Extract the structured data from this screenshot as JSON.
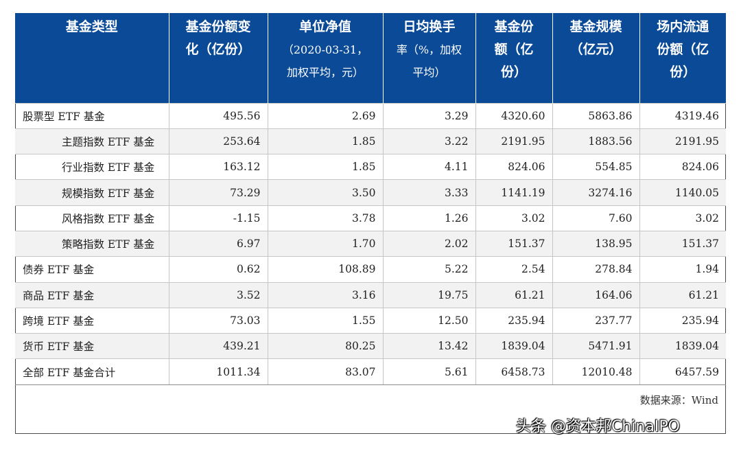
{
  "table": {
    "headers": [
      {
        "main": [
          "基金类型"
        ],
        "sub": []
      },
      {
        "main": [
          "基金份额变",
          "化（亿份）"
        ],
        "sub": []
      },
      {
        "main": [
          "单位净值"
        ],
        "sub": [
          "（2020-03-31，",
          "加权平均，元）"
        ]
      },
      {
        "main": [
          "日均换手"
        ],
        "sub": [
          "率（%，加权",
          "平均）"
        ]
      },
      {
        "main": [
          "基金份",
          "额（亿",
          "份）"
        ],
        "sub": []
      },
      {
        "main": [
          "基金规模",
          "（亿元）"
        ],
        "sub": []
      },
      {
        "main": [
          "场内流通",
          "份额（亿",
          "份）"
        ],
        "sub": []
      }
    ],
    "rows": [
      {
        "name": "股票型 ETF 基金",
        "indent": false,
        "shade": false,
        "values": [
          "495.56",
          "2.69",
          "3.29",
          "4320.60",
          "5863.86",
          "4319.46"
        ]
      },
      {
        "name": "主题指数 ETF 基金",
        "indent": true,
        "shade": true,
        "values": [
          "253.64",
          "1.85",
          "3.22",
          "2191.95",
          "1883.56",
          "2191.95"
        ]
      },
      {
        "name": "行业指数 ETF 基金",
        "indent": true,
        "shade": false,
        "values": [
          "163.12",
          "1.85",
          "4.11",
          "824.06",
          "554.85",
          "824.06"
        ]
      },
      {
        "name": "规模指数 ETF 基金",
        "indent": true,
        "shade": true,
        "values": [
          "73.29",
          "3.50",
          "3.33",
          "1141.19",
          "3274.16",
          "1140.05"
        ]
      },
      {
        "name": "风格指数 ETF 基金",
        "indent": true,
        "shade": false,
        "values": [
          "-1.15",
          "3.78",
          "1.26",
          "3.02",
          "7.60",
          "3.02"
        ]
      },
      {
        "name": "策略指数 ETF 基金",
        "indent": true,
        "shade": true,
        "values": [
          "6.97",
          "1.70",
          "2.02",
          "151.37",
          "138.95",
          "151.37"
        ]
      },
      {
        "name": "债券 ETF 基金",
        "indent": false,
        "shade": false,
        "values": [
          "0.62",
          "108.89",
          "5.22",
          "2.54",
          "278.84",
          "1.94"
        ]
      },
      {
        "name": "商品 ETF 基金",
        "indent": false,
        "shade": true,
        "values": [
          "3.52",
          "3.16",
          "19.75",
          "61.21",
          "164.06",
          "61.21"
        ]
      },
      {
        "name": "跨境 ETF 基金",
        "indent": false,
        "shade": false,
        "values": [
          "73.03",
          "1.55",
          "12.50",
          "235.94",
          "237.77",
          "235.94"
        ]
      },
      {
        "name": "货币 ETF 基金",
        "indent": false,
        "shade": true,
        "values": [
          "439.21",
          "80.25",
          "13.42",
          "1839.04",
          "5471.91",
          "1839.04"
        ]
      },
      {
        "name": "全部 ETF 基金合计",
        "indent": false,
        "shade": false,
        "values": [
          "1011.34",
          "83.07",
          "5.61",
          "6458.73",
          "12010.48",
          "6457.59"
        ]
      }
    ]
  },
  "source_note": "数据来源：Wind",
  "watermark": "头条 @资本邦ChinaIPO",
  "colors": {
    "header_bg": "#0b4a97",
    "header_text": "#ffffff",
    "shade_row": "#f2f2f2"
  }
}
